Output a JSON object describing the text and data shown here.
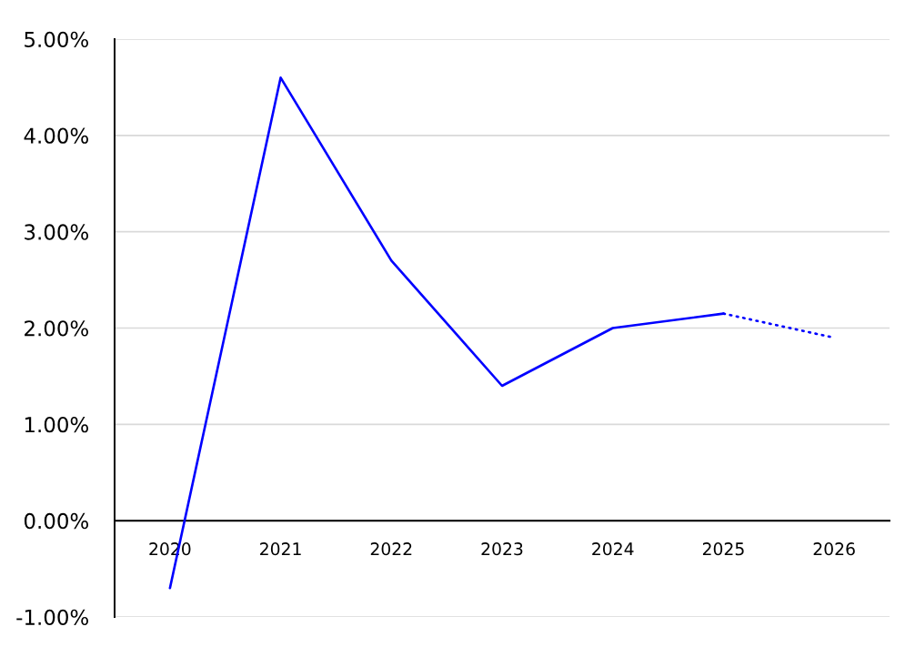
{
  "chart_data": {
    "type": "line",
    "categories": [
      "2020",
      "2021",
      "2022",
      "2023",
      "2024",
      "2025",
      "2026"
    ],
    "series": [
      {
        "color": "#0000ff",
        "line_style": "solid",
        "values": [
          -0.7,
          4.6,
          2.7,
          1.4,
          2.0,
          2.15,
          null
        ]
      },
      {
        "color": "#0000ff",
        "line_style": "dotted",
        "values": [
          null,
          null,
          null,
          null,
          null,
          2.15,
          1.9
        ]
      }
    ],
    "ylim": [
      -1,
      5
    ],
    "yticks": [
      {
        "value": -1,
        "label": "-1.00%"
      },
      {
        "value": 0,
        "label": "0.00%"
      },
      {
        "value": 1,
        "label": "1.00%"
      },
      {
        "value": 2,
        "label": "2.00%"
      },
      {
        "value": 3,
        "label": "3.00%"
      },
      {
        "value": 4,
        "label": "4.00%"
      },
      {
        "value": 5,
        "label": "5.00%"
      }
    ],
    "grid": "y"
  }
}
